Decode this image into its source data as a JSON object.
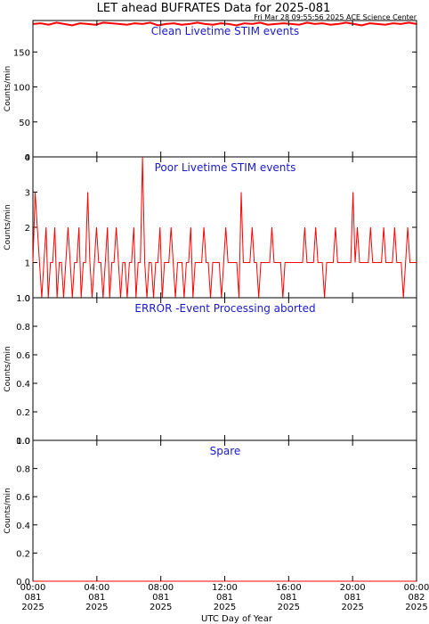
{
  "page": {
    "title": "LET ahead BUFRATES Data for 2025-081",
    "subtitle": "Fri Mar 28 09:55:56 2025 ACE Science Center",
    "x_axis_label": "UTC Day of Year"
  },
  "colors": {
    "trace": "#ff0000",
    "panel_title": "#1a1acc",
    "axes": "#000000"
  },
  "x_ticks": [
    {
      "time": "00:00",
      "doy": "081",
      "year": "2025"
    },
    {
      "time": "04:00",
      "doy": "081",
      "year": "2025"
    },
    {
      "time": "08:00",
      "doy": "081",
      "year": "2025"
    },
    {
      "time": "12:00",
      "doy": "081",
      "year": "2025"
    },
    {
      "time": "16:00",
      "doy": "081",
      "year": "2025"
    },
    {
      "time": "20:00",
      "doy": "081",
      "year": "2025"
    },
    {
      "time": "00:00",
      "doy": "082",
      "year": "2025"
    }
  ],
  "chart_data": [
    {
      "type": "line",
      "title": "Clean Livetime STIM events",
      "ylabel": "Counts/min",
      "xlabel": "UTC Day of Year",
      "xlim": [
        0,
        24
      ],
      "ylim": [
        0,
        195
      ],
      "y_ticks": [
        "0",
        "50",
        "100",
        "150"
      ],
      "y_tick_values": [
        0,
        50,
        100,
        150
      ],
      "series": [
        {
          "values": [
            190,
            191,
            189,
            192,
            190,
            188,
            191,
            190,
            189,
            192,
            191,
            190,
            189,
            191,
            190,
            192,
            188,
            190,
            191,
            189,
            190,
            192,
            190,
            189,
            191,
            190,
            188,
            191,
            190,
            192,
            189,
            190,
            191,
            190,
            189,
            192,
            190,
            191,
            189,
            190,
            192,
            190,
            188,
            191,
            190,
            189,
            191,
            190,
            192,
            190
          ]
        }
      ]
    },
    {
      "type": "line",
      "title": "Poor Livetime STIM events",
      "ylabel": "Counts/min",
      "xlabel": "UTC Day of Year",
      "xlim": [
        0,
        24
      ],
      "ylim": [
        0,
        4
      ],
      "y_ticks": [
        "0",
        "1",
        "2",
        "3",
        "4"
      ],
      "y_tick_values": [
        0,
        1,
        2,
        3,
        4
      ],
      "series": [
        {
          "values": [
            1,
            3,
            2,
            1,
            0,
            1,
            2,
            0,
            1,
            1,
            2,
            0,
            1,
            1,
            0,
            1,
            2,
            1,
            0,
            1,
            1,
            2,
            0,
            1,
            1,
            3,
            1,
            0,
            1,
            2,
            1,
            1,
            0,
            1,
            2,
            0,
            1,
            1,
            2,
            1,
            0,
            1,
            1,
            0,
            1,
            1,
            2,
            0,
            1,
            1,
            4,
            1,
            0,
            1,
            1,
            0,
            1,
            1,
            2,
            0,
            1,
            1,
            1,
            2,
            1,
            0,
            1,
            1,
            1,
            0,
            1,
            1,
            2,
            0,
            1,
            1,
            1,
            1,
            2,
            1,
            1,
            0,
            1,
            1,
            1,
            1,
            0,
            1,
            2,
            1,
            1,
            1,
            1,
            1,
            0,
            3,
            1,
            1,
            1,
            1,
            2,
            1,
            1,
            0,
            1,
            1,
            1,
            1,
            1,
            2,
            1,
            1,
            1,
            1,
            0,
            1,
            1,
            1,
            1,
            1,
            1,
            1,
            1,
            1,
            2,
            1,
            1,
            1,
            1,
            2,
            1,
            1,
            1,
            0,
            1,
            1,
            1,
            1,
            2,
            1,
            1,
            1,
            1,
            1,
            1,
            1,
            3,
            1,
            2,
            1,
            1,
            1,
            1,
            1,
            2,
            1,
            1,
            1,
            1,
            1,
            2,
            1,
            1,
            1,
            1,
            2,
            1,
            1,
            1,
            0,
            1,
            2,
            1,
            1,
            1,
            1
          ]
        }
      ]
    },
    {
      "type": "line",
      "title": "ERROR -Event Processing aborted",
      "ylabel": "Counts/min",
      "xlabel": "UTC Day of Year",
      "xlim": [
        0,
        24
      ],
      "ylim": [
        0,
        1
      ],
      "y_ticks": [
        "0.0",
        "0.2",
        "0.4",
        "0.6",
        "0.8",
        "1.0"
      ],
      "y_tick_values": [
        0,
        0.2,
        0.4,
        0.6,
        0.8,
        1.0
      ],
      "series": [
        {
          "values": [
            0,
            0
          ]
        }
      ]
    },
    {
      "type": "line",
      "title": "Spare",
      "ylabel": "Counts/min",
      "xlabel": "UTC Day of Year",
      "xlim": [
        0,
        24
      ],
      "ylim": [
        0,
        1
      ],
      "y_ticks": [
        "0.0",
        "0.2",
        "0.4",
        "0.6",
        "0.8",
        "1.0"
      ],
      "y_tick_values": [
        0,
        0.2,
        0.4,
        0.6,
        0.8,
        1.0
      ],
      "series": [
        {
          "values": [
            0,
            0
          ]
        }
      ]
    }
  ]
}
